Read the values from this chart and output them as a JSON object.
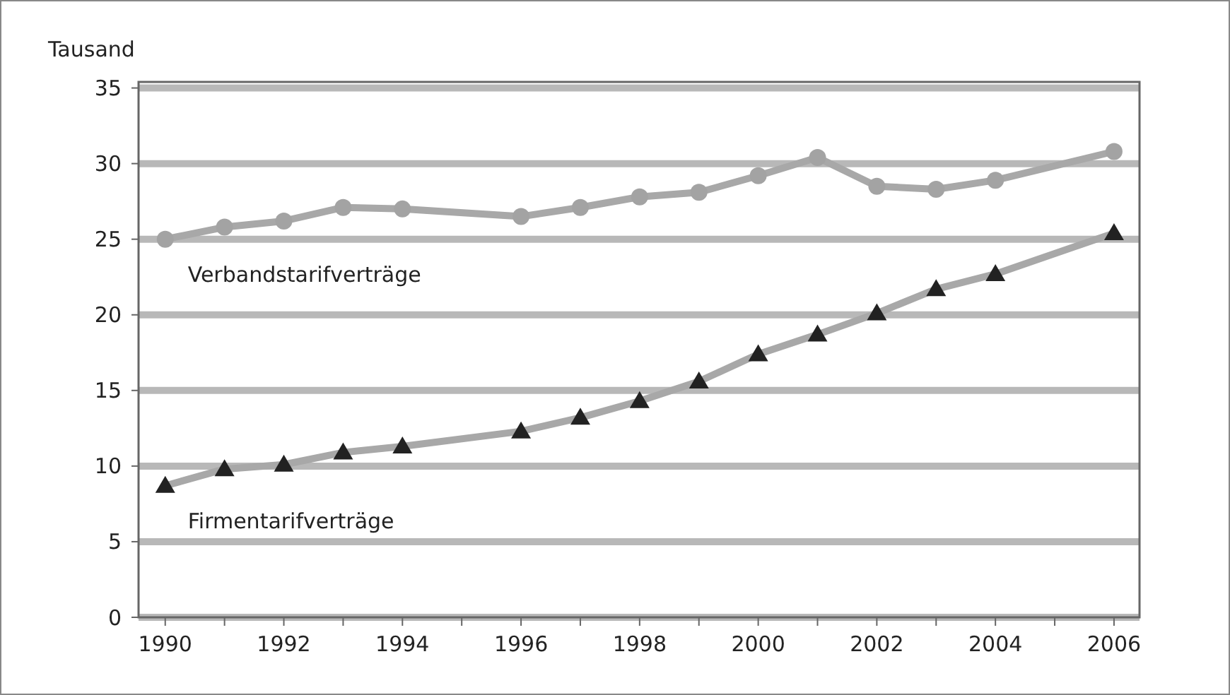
{
  "chart_data": {
    "type": "line",
    "ylabel": "Tausand",
    "x": [
      1990,
      1991,
      1992,
      1993,
      1994,
      1996,
      1997,
      1998,
      1999,
      2000,
      2001,
      2002,
      2003,
      2004,
      2006
    ],
    "series": [
      {
        "name": "Verbandstarifverträge",
        "color": "#a3a3a3",
        "marker": "circle",
        "values": [
          25.0,
          25.8,
          26.2,
          27.1,
          27.0,
          26.5,
          27.1,
          27.8,
          28.1,
          29.2,
          30.4,
          28.5,
          28.3,
          28.9,
          30.8
        ]
      },
      {
        "name": "Firmentarifverträge",
        "color": "#222222",
        "marker": "triangle",
        "values": [
          8.7,
          9.8,
          10.1,
          10.9,
          11.3,
          12.3,
          13.2,
          14.3,
          15.6,
          17.4,
          18.7,
          20.1,
          21.7,
          22.7,
          25.4
        ]
      }
    ],
    "xlim": [
      1989.55,
      2006.43
    ],
    "ylim": [
      0,
      35.4
    ],
    "xticks": [
      1990,
      {
        "value": 1991,
        "label": null
      },
      1992,
      {
        "value": 1993,
        "label": null
      },
      1994,
      {
        "value": 1995,
        "label": null
      },
      1996,
      {
        "value": 1997,
        "label": null
      },
      1998,
      {
        "value": 1999,
        "label": null
      },
      2000,
      {
        "value": 2001,
        "label": null
      },
      2002,
      {
        "value": 2003,
        "label": null
      },
      2004,
      {
        "value": 2005,
        "label": null
      },
      2006
    ],
    "yticks": [
      0,
      5,
      10,
      15,
      20,
      25,
      30,
      35
    ],
    "grid": "y"
  }
}
